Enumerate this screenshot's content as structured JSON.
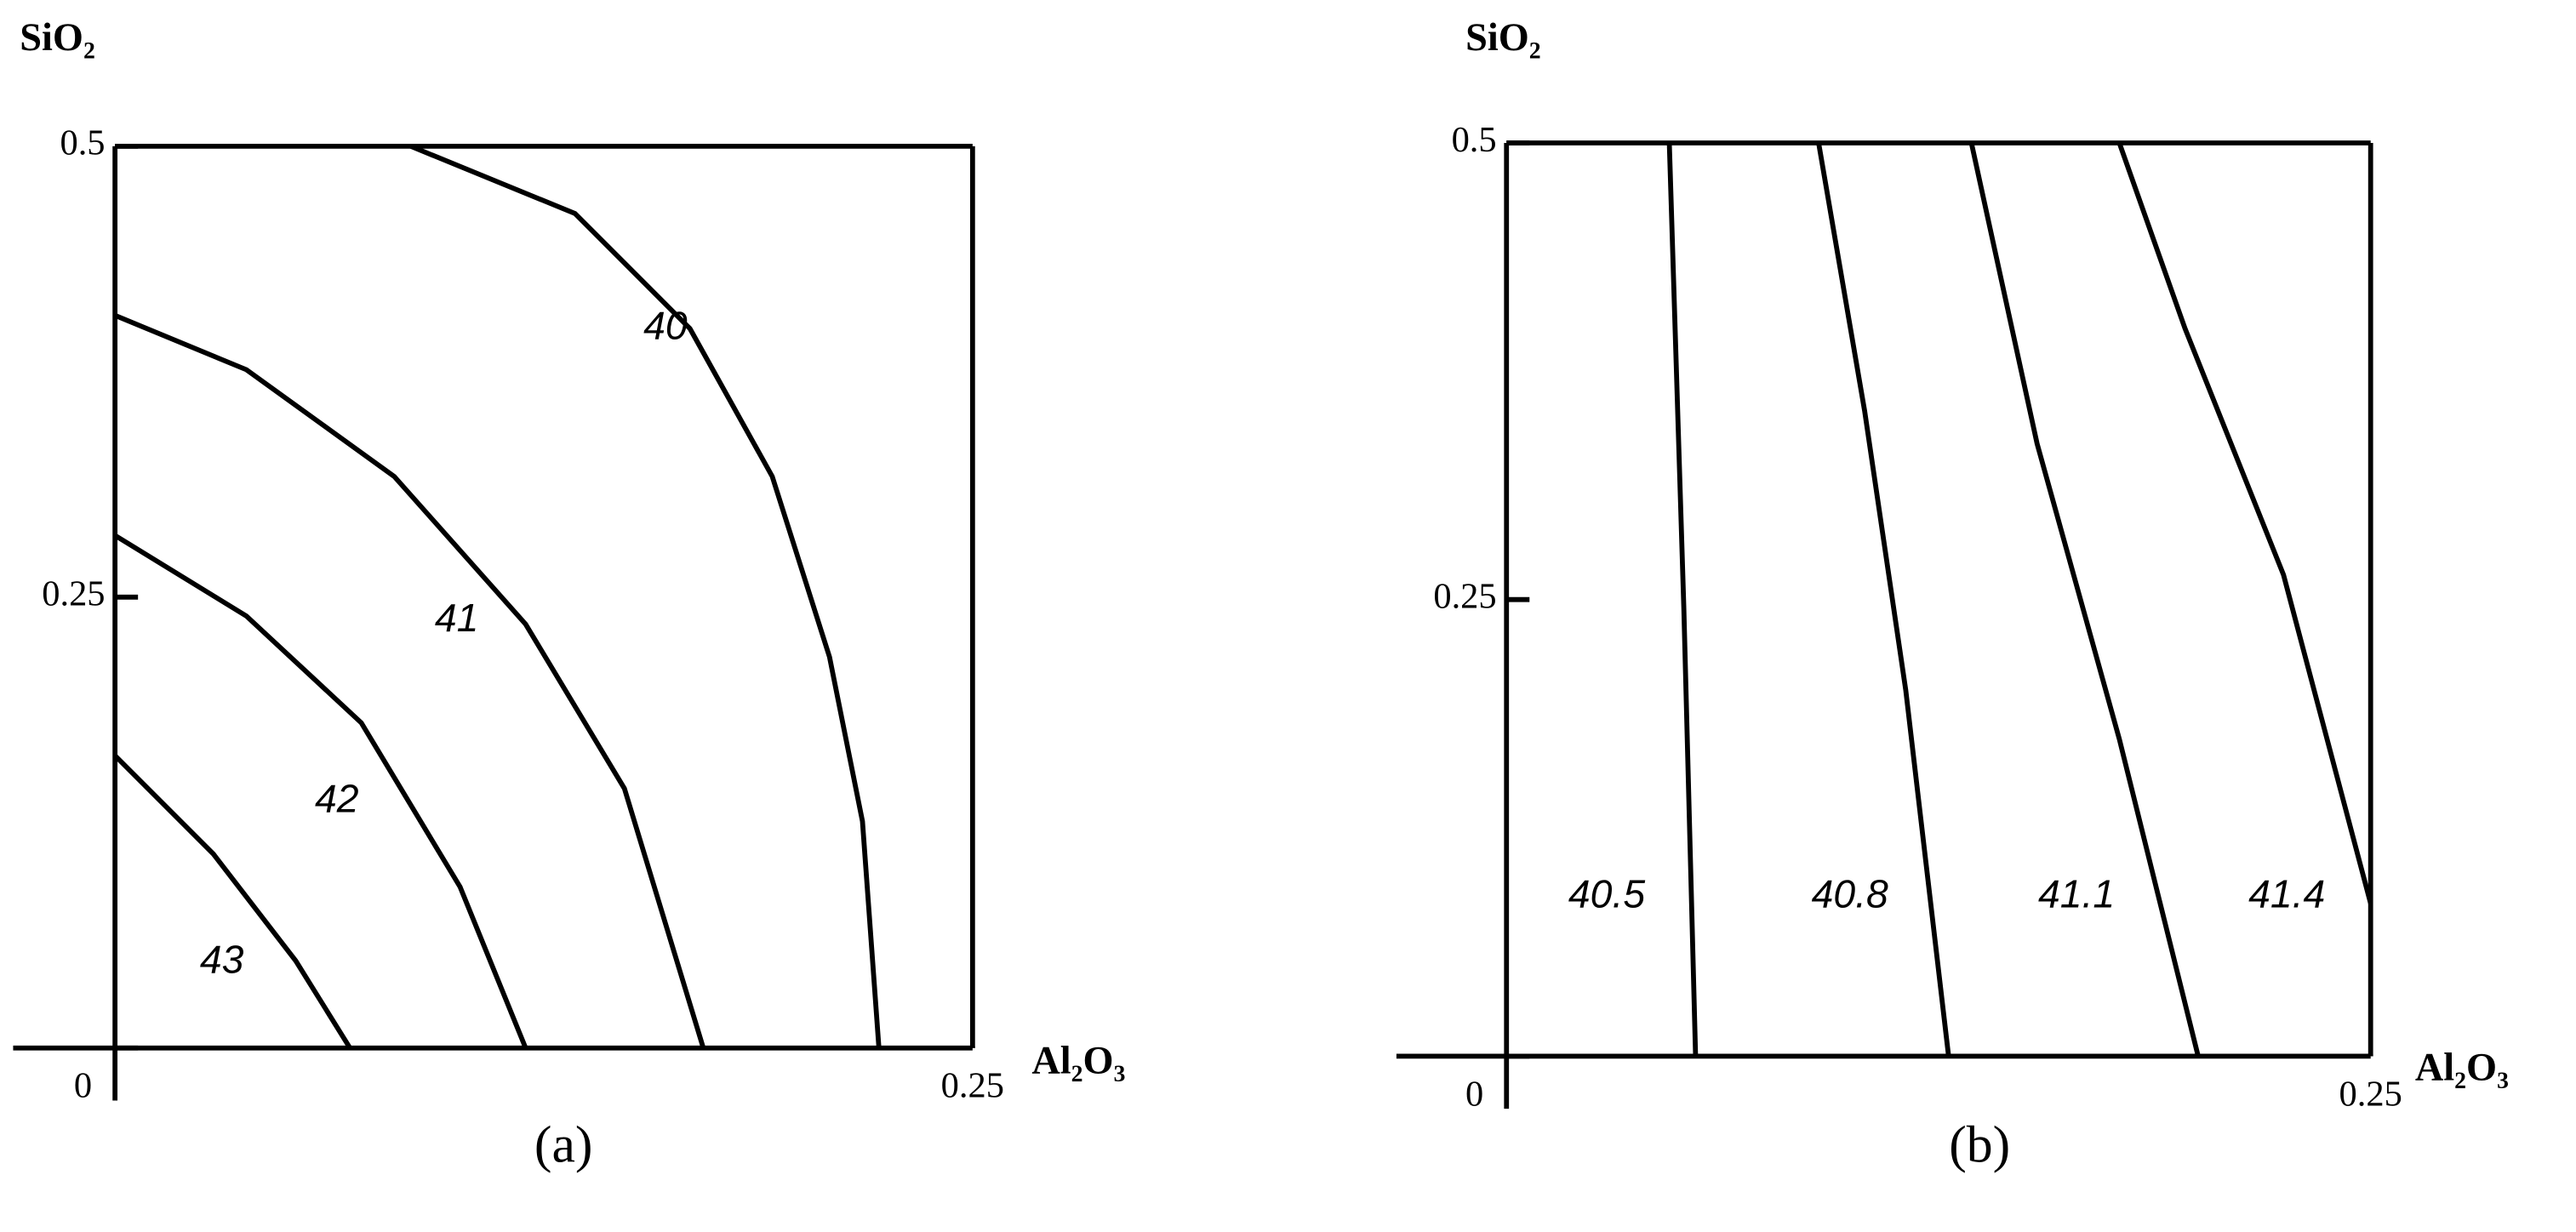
{
  "chart_data": [
    {
      "type": "contour",
      "panel_label": "(a)",
      "xlabel": "Al₂O₃",
      "ylabel": "SiO₂",
      "xlim": [
        0,
        0.25
      ],
      "ylim": [
        0,
        0.5
      ],
      "xticks": [
        0.25
      ],
      "yticks": [
        0,
        0.25,
        0.5
      ],
      "color": "#000000",
      "contours": [
        {
          "level": 40,
          "x": [
            0.0862,
            0.1341,
            0.1676,
            0.1916,
            0.2083,
            0.2179,
            0.2227
          ],
          "y": [
            0.5,
            0.4627,
            0.3989,
            0.3169,
            0.2168,
            0.1257,
            0
          ]
        },
        {
          "level": 41,
          "x": [
            0,
            0.0383,
            0.0814,
            0.1197,
            0.1485,
            0.1715
          ],
          "y": [
            0.4062,
            0.3761,
            0.3169,
            0.235,
            0.1439,
            0
          ]
        },
        {
          "level": 42,
          "x": [
            0,
            0.0383,
            0.0718,
            0.1006,
            0.1197
          ],
          "y": [
            0.2842,
            0.2395,
            0.1803,
            0.0893,
            0
          ]
        },
        {
          "level": 43,
          "x": [
            0,
            0.0287,
            0.0527,
            0.0685
          ],
          "y": [
            0.1621,
            0.1075,
            0.0483,
            0
          ]
        }
      ]
    },
    {
      "type": "contour",
      "panel_label": "(b)",
      "xlabel": "Al₂O₃",
      "ylabel": "SiO₂",
      "xlim": [
        0,
        0.25
      ],
      "ylim": [
        0,
        0.5
      ],
      "xticks": [
        0.25
      ],
      "yticks": [
        0,
        0.25,
        0.5
      ],
      "color": "#000000",
      "contours": [
        {
          "level": 40.5,
          "x": [
            0.0471,
            0.0513,
            0.0547
          ],
          "y": [
            0.5,
            0.2455,
            0
          ]
        },
        {
          "level": 40.8,
          "x": [
            0.0903,
            0.1036,
            0.1155,
            0.1279
          ],
          "y": [
            0.5,
            0.3534,
            0.2005,
            0
          ]
        },
        {
          "level": 41.1,
          "x": [
            0.1345,
            0.1535,
            0.1773,
            0.2001
          ],
          "y": [
            0.5,
            0.3354,
            0.1736,
            0
          ]
        },
        {
          "level": 41.4,
          "x": [
            0.1773,
            0.1963,
            0.2248,
            0.25
          ],
          "y": [
            0.5,
            0.3984,
            0.2635,
            0.0836
          ]
        }
      ]
    }
  ]
}
